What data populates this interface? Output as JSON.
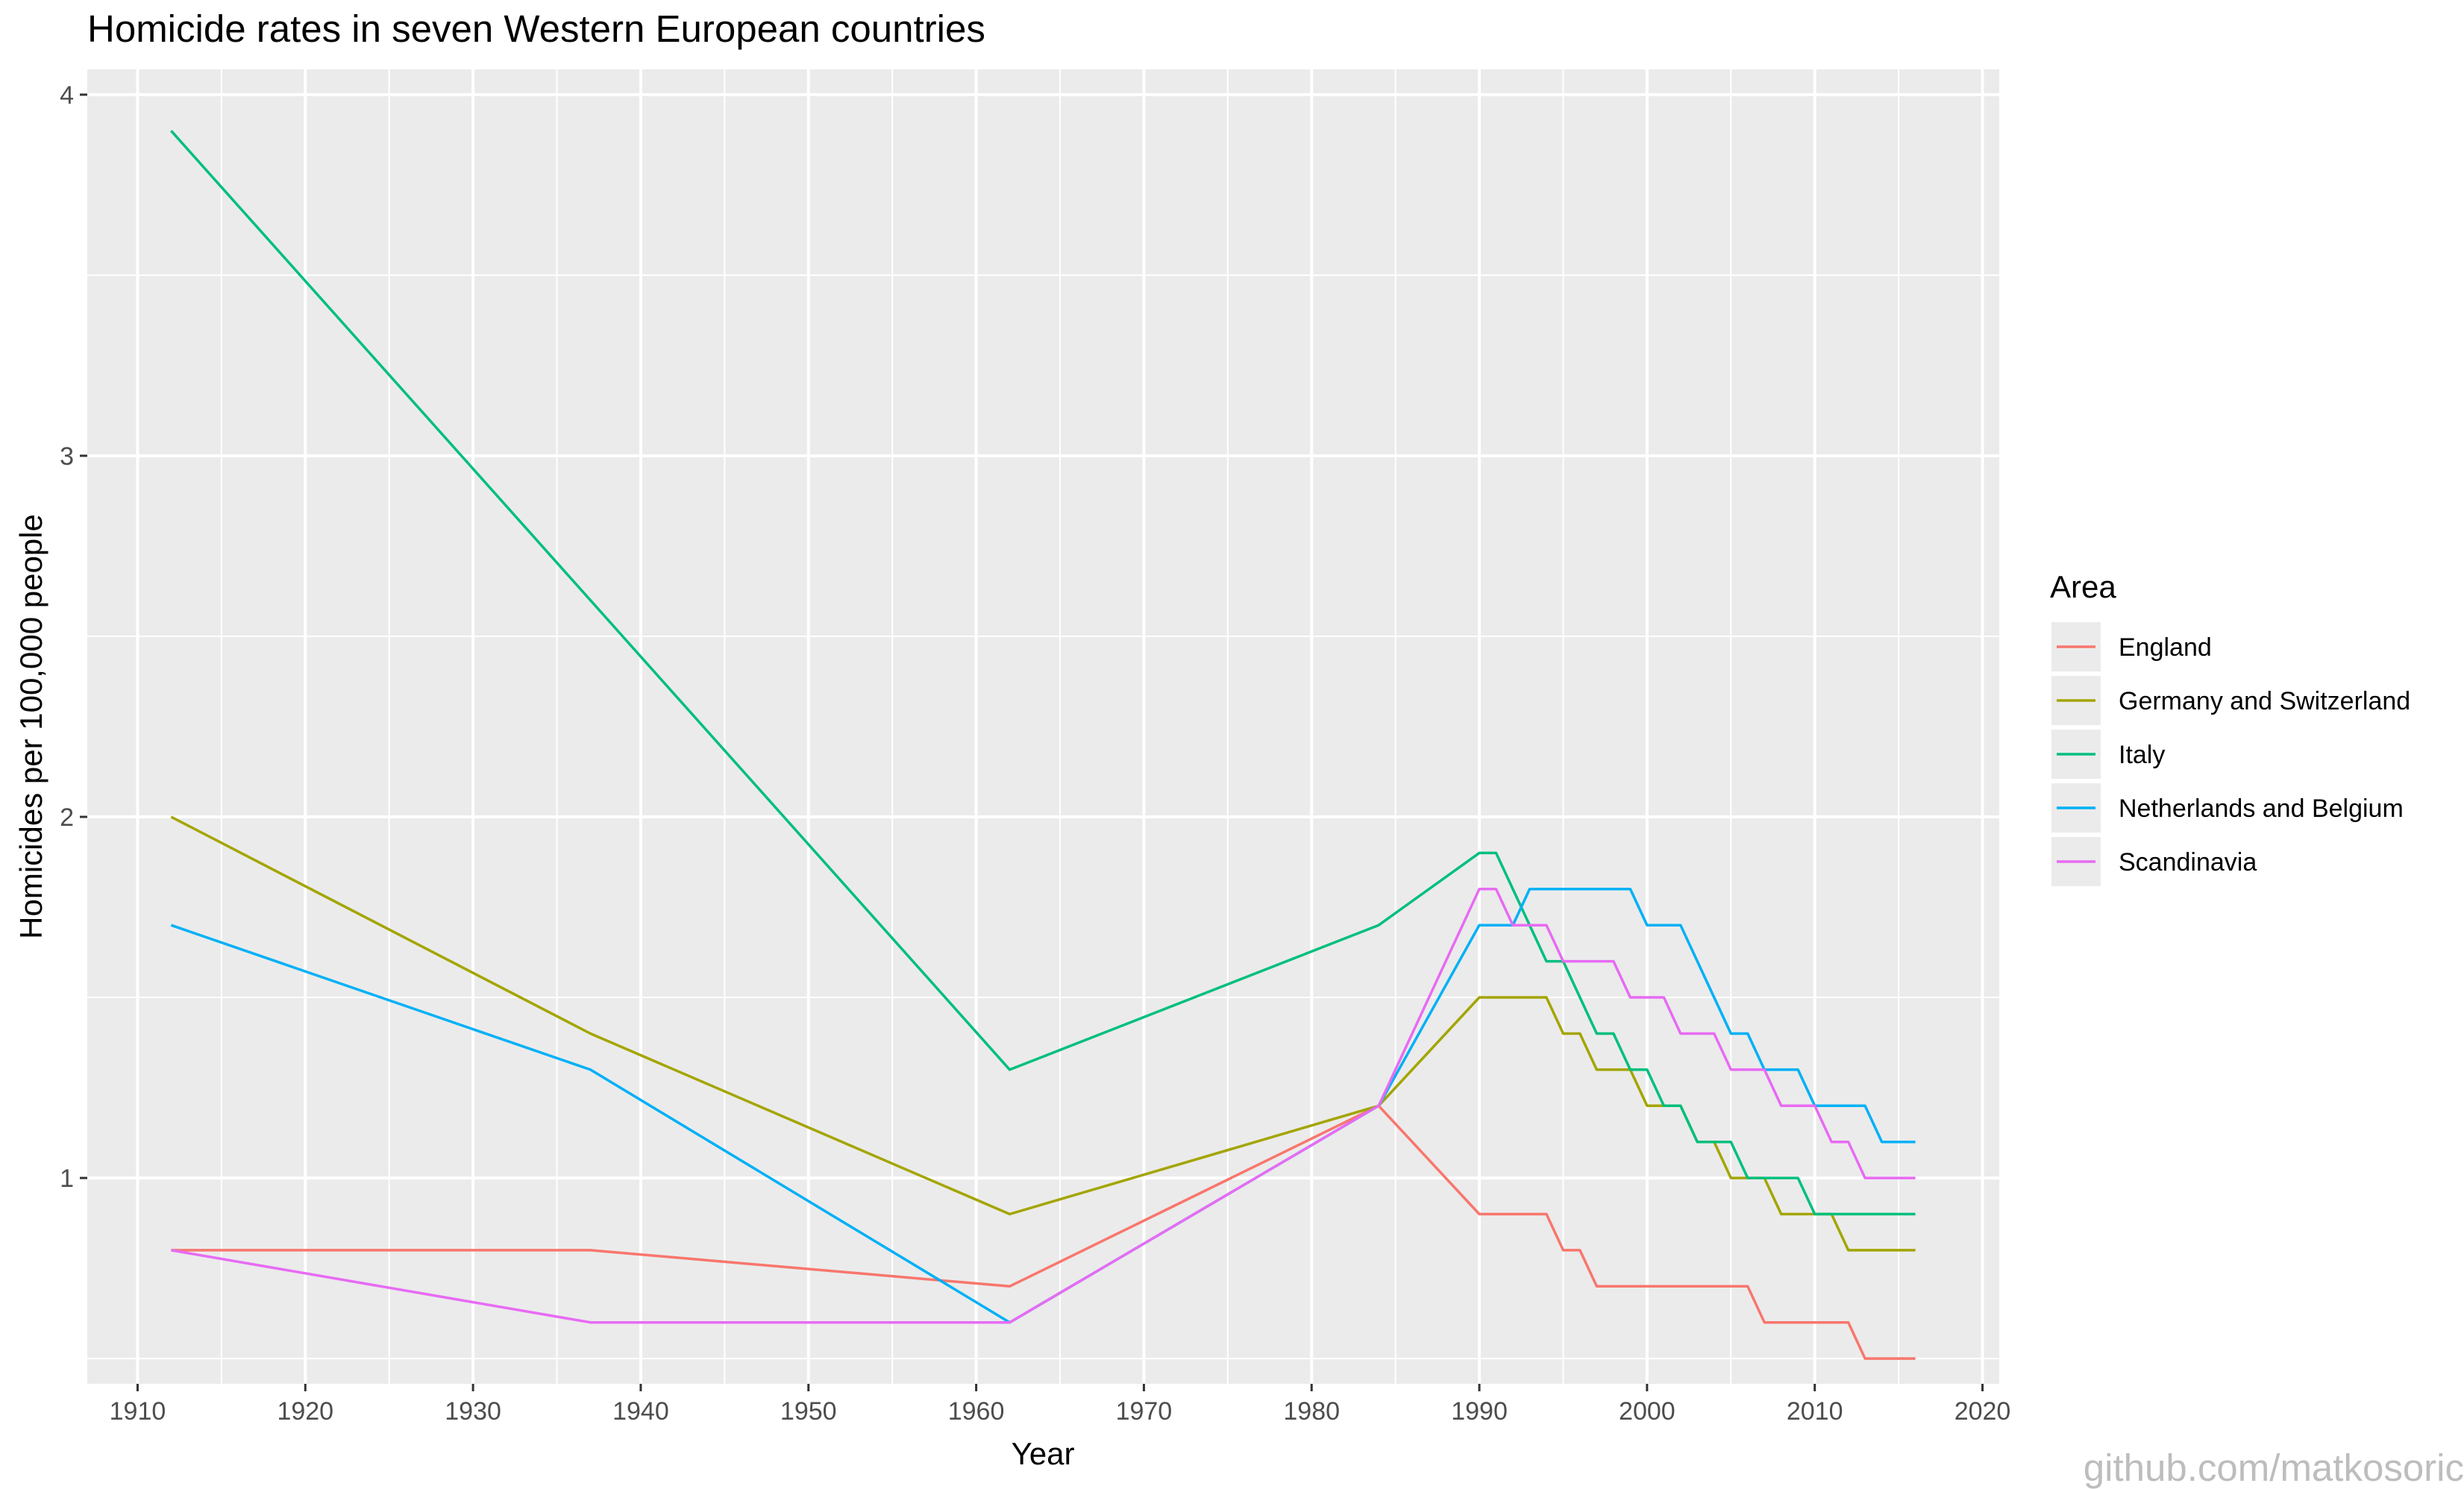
{
  "chart_data": {
    "type": "line",
    "title": "Homicide rates in seven Western European countries",
    "xlabel": "Year",
    "ylabel": "Homicides per 100,000 people",
    "xlim": [
      1907,
      2021
    ],
    "ylim": [
      0.43,
      4.07
    ],
    "x_ticks": [
      1910,
      1920,
      1930,
      1940,
      1950,
      1960,
      1970,
      1980,
      1990,
      2000,
      2010,
      2020
    ],
    "y_ticks": [
      1,
      2,
      3,
      4
    ],
    "grid": true,
    "legend": {
      "title": "Area",
      "position": "right"
    },
    "series": [
      {
        "name": "England",
        "color": "#F8766D",
        "points": [
          [
            1912,
            0.8
          ],
          [
            1937,
            0.8
          ],
          [
            1962,
            0.7
          ],
          [
            1984,
            1.2
          ],
          [
            1990,
            0.9
          ],
          [
            1994,
            0.9
          ],
          [
            1995,
            0.8
          ],
          [
            1996,
            0.8
          ],
          [
            1997,
            0.7
          ],
          [
            2006,
            0.7
          ],
          [
            2007,
            0.6
          ],
          [
            2012,
            0.6
          ],
          [
            2013,
            0.5
          ],
          [
            2016,
            0.5
          ]
        ]
      },
      {
        "name": "Germany and Switzerland",
        "color": "#A3A500",
        "points": [
          [
            1912,
            2.0
          ],
          [
            1937,
            1.4
          ],
          [
            1962,
            0.9
          ],
          [
            1984,
            1.2
          ],
          [
            1990,
            1.5
          ],
          [
            1994,
            1.5
          ],
          [
            1995,
            1.4
          ],
          [
            1996,
            1.4
          ],
          [
            1997,
            1.3
          ],
          [
            1999,
            1.3
          ],
          [
            2000,
            1.2
          ],
          [
            2002,
            1.2
          ],
          [
            2003,
            1.1
          ],
          [
            2004,
            1.1
          ],
          [
            2005,
            1.0
          ],
          [
            2007,
            1.0
          ],
          [
            2008,
            0.9
          ],
          [
            2011,
            0.9
          ],
          [
            2012,
            0.8
          ],
          [
            2016,
            0.8
          ]
        ]
      },
      {
        "name": "Italy",
        "color": "#00BF7D",
        "points": [
          [
            1912,
            3.9
          ],
          [
            1962,
            1.3
          ],
          [
            1984,
            1.7
          ],
          [
            1990,
            1.9
          ],
          [
            1991,
            1.9
          ],
          [
            1993,
            1.7
          ],
          [
            1994,
            1.6
          ],
          [
            1995,
            1.6
          ],
          [
            1997,
            1.4
          ],
          [
            1998,
            1.4
          ],
          [
            1999,
            1.3
          ],
          [
            2000,
            1.3
          ],
          [
            2001,
            1.2
          ],
          [
            2002,
            1.2
          ],
          [
            2003,
            1.1
          ],
          [
            2005,
            1.1
          ],
          [
            2006,
            1.0
          ],
          [
            2009,
            1.0
          ],
          [
            2010,
            0.9
          ],
          [
            2016,
            0.9
          ]
        ]
      },
      {
        "name": "Netherlands and Belgium",
        "color": "#00B0F6",
        "points": [
          [
            1912,
            1.7
          ],
          [
            1937,
            1.3
          ],
          [
            1962,
            0.6
          ],
          [
            1984,
            1.2
          ],
          [
            1990,
            1.7
          ],
          [
            1992,
            1.7
          ],
          [
            1993,
            1.8
          ],
          [
            1999,
            1.8
          ],
          [
            2000,
            1.7
          ],
          [
            2002,
            1.7
          ],
          [
            2005,
            1.4
          ],
          [
            2006,
            1.4
          ],
          [
            2007,
            1.3
          ],
          [
            2009,
            1.3
          ],
          [
            2010,
            1.2
          ],
          [
            2013,
            1.2
          ],
          [
            2014,
            1.1
          ],
          [
            2016,
            1.1
          ]
        ]
      },
      {
        "name": "Scandinavia",
        "color": "#E76BF3",
        "points": [
          [
            1912,
            0.8
          ],
          [
            1937,
            0.6
          ],
          [
            1962,
            0.6
          ],
          [
            1984,
            1.2
          ],
          [
            1990,
            1.8
          ],
          [
            1991,
            1.8
          ],
          [
            1992,
            1.7
          ],
          [
            1994,
            1.7
          ],
          [
            1995,
            1.6
          ],
          [
            1998,
            1.6
          ],
          [
            1999,
            1.5
          ],
          [
            2001,
            1.5
          ],
          [
            2002,
            1.4
          ],
          [
            2004,
            1.4
          ],
          [
            2005,
            1.3
          ],
          [
            2007,
            1.3
          ],
          [
            2008,
            1.2
          ],
          [
            2010,
            1.2
          ],
          [
            2011,
            1.1
          ],
          [
            2012,
            1.1
          ],
          [
            2013,
            1.0
          ],
          [
            2016,
            1.0
          ]
        ]
      }
    ]
  },
  "watermark": "github.com/matkosoric"
}
